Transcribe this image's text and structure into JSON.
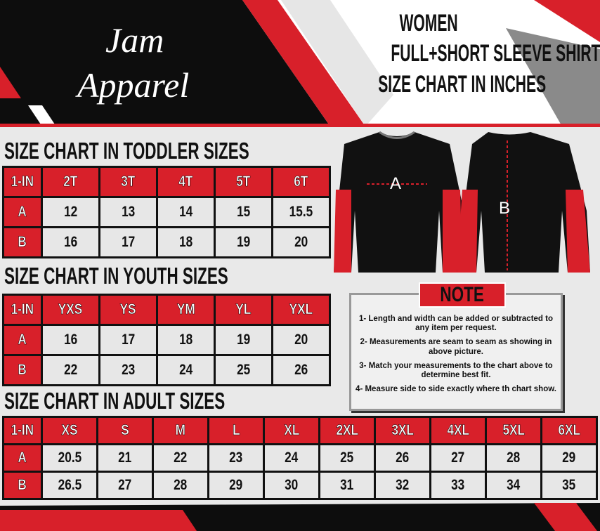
{
  "brand": [
    "Jam",
    "Apparel"
  ],
  "heading": [
    "WOMEN",
    "FULL+SHORT SLEEVE SHIRT",
    "SIZE CHART IN INCHES"
  ],
  "shirt_labels": [
    "A",
    "B"
  ],
  "tables": [
    {
      "title": "SIZE CHART IN TODDLER  SIZES",
      "header": [
        "1-IN",
        "2T",
        "3T",
        "4T",
        "5T",
        "6T"
      ],
      "rows": [
        [
          "A",
          "12",
          "13",
          "14",
          "15",
          "15.5"
        ],
        [
          "B",
          "16",
          "17",
          "18",
          "19",
          "20"
        ]
      ]
    },
    {
      "title": "SIZE CHART IN YOUTH  SIZES",
      "header": [
        "1-IN",
        "YXS",
        "YS",
        "YM",
        "YL",
        "YXL"
      ],
      "rows": [
        [
          "A",
          "16",
          "17",
          "18",
          "19",
          "20"
        ],
        [
          "B",
          "22",
          "23",
          "24",
          "25",
          "26"
        ]
      ]
    },
    {
      "title": "SIZE CHART IN ADULT SIZES",
      "header": [
        "1-IN",
        "XS",
        "S",
        "M",
        "L",
        "XL",
        "2XL",
        "3XL",
        "4XL",
        "5XL",
        "6XL"
      ],
      "rows": [
        [
          "A",
          "20.5",
          "21",
          "22",
          "23",
          "24",
          "25",
          "26",
          "27",
          "28",
          "29"
        ],
        [
          "B",
          "26.5",
          "27",
          "28",
          "29",
          "30",
          "31",
          "32",
          "33",
          "34",
          "35"
        ]
      ]
    }
  ],
  "note": {
    "title": "NOTE",
    "items": [
      "1- Length and width can be added or subtracted to any item per request.",
      "2- Measurements are seam to seam  as showing in above picture.",
      "3- Match your measurements to the chart above to determine best fit.",
      "4- Measure side to side exactly where th chart show."
    ]
  }
}
